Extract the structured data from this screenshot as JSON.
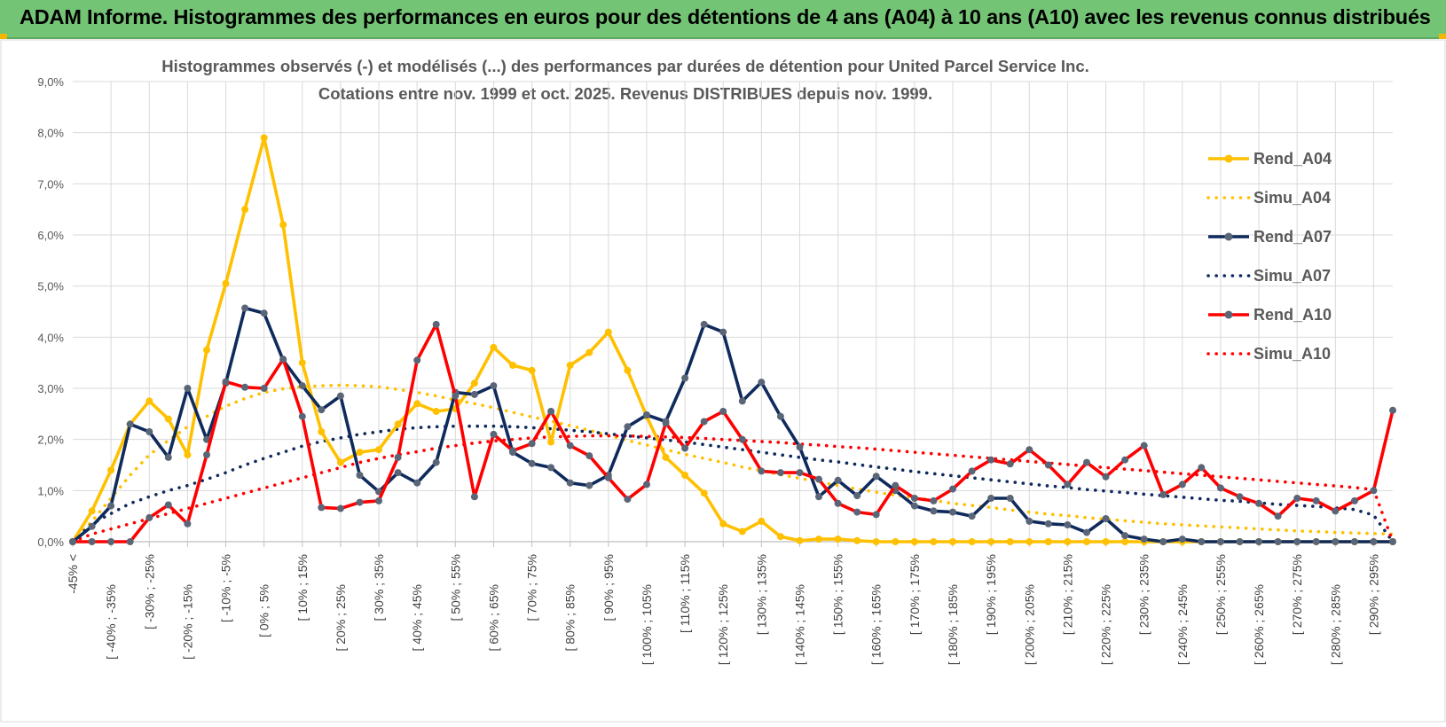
{
  "banner": {
    "title": "ADAM Informe. Histogrammes des performances en euros pour des détentions de 4 ans (A04) à 10 ans (A10) avec les revenus connus distribués"
  },
  "colors": {
    "a04": "#ffc000",
    "a07": "#0f2a5c",
    "a10": "#ff0000",
    "grid": "#d9d9d9",
    "banner": "#74c476"
  },
  "chart_data": {
    "type": "line",
    "title": "Histogrammes observés (-) et modélisés (...) des performances par durées de détention pour United Parcel Service Inc.",
    "subtitle": "Cotations entre nov. 1999 et oct. 2025.  Revenus DISTRIBUES depuis nov. 1999.",
    "y_ticks": [
      "0,0%",
      "1,0%",
      "2,0%",
      "3,0%",
      "4,0%",
      "5,0%",
      "6,0%",
      "7,0%",
      "8,0%",
      "9,0%"
    ],
    "ylim": [
      0,
      9
    ],
    "grid": true,
    "legend_position": "right",
    "x_labels": [
      "-45% <",
      "[ -40% ; -35%",
      "[ -30% ; -25%",
      "[ -20% ; -15%",
      "[ -10% ; -5%",
      "[ 0% ; 5%",
      "[ 10% ; 15%",
      "[ 20% ; 25%",
      "[ 30% ; 35%",
      "[ 40% ; 45%",
      "[ 50% ; 55%",
      "[ 60% ; 65%",
      "[ 70% ; 75%",
      "[ 80% ; 85%",
      "[ 90% ; 95%",
      "[ 100% ; 105%",
      "[ 110% ; 115%",
      "[ 120% ; 125%",
      "[ 130% ; 135%",
      "[ 140% ; 145%",
      "[ 150% ; 155%",
      "[ 160% ; 165%",
      "[ 170% ; 175%",
      "[ 180% ; 185%",
      "[ 190% ; 195%",
      "[ 200% ; 205%",
      "[ 210% ; 215%",
      "[ 220% ; 225%",
      "[ 230% ; 235%",
      "[ 240% ; 245%",
      "[ 250% ; 255%",
      "[ 260% ; 265%",
      "[ 270% ; 275%",
      "[ 280% ; 285%",
      "[ 290% ; 295%"
    ],
    "n_bins": 70,
    "series": [
      {
        "name": "Rend_A04",
        "style": "solid",
        "color": "#ffc000",
        "values": [
          0.0,
          0.6,
          1.4,
          2.3,
          2.75,
          2.4,
          1.7,
          3.75,
          5.05,
          6.5,
          7.9,
          6.2,
          3.5,
          2.15,
          1.55,
          1.75,
          1.8,
          2.3,
          2.7,
          2.55,
          2.6,
          3.1,
          3.8,
          3.45,
          3.35,
          1.95,
          3.45,
          3.7,
          4.1,
          3.35,
          2.45,
          1.65,
          1.3,
          0.95,
          0.35,
          0.2,
          0.4,
          0.1,
          0.02,
          0.05,
          0.05,
          0.02,
          0.0,
          0.0,
          0.0,
          0.0,
          0.0,
          0.0,
          0.0,
          0.0,
          0.0,
          0.0,
          0.0,
          0.0,
          0.0,
          0.0,
          0.0,
          0.0,
          0.0,
          0.0,
          0.0,
          0.0,
          0.0,
          0.0,
          0.0,
          0.0,
          0.0,
          0.0,
          0.0,
          0.0
        ]
      },
      {
        "name": "Simu_A04",
        "style": "dotted",
        "color": "#ffc000",
        "values": [
          0.0,
          0.4,
          0.85,
          1.3,
          1.7,
          1.98,
          2.25,
          2.45,
          2.65,
          2.8,
          2.92,
          2.99,
          3.03,
          3.05,
          3.06,
          3.05,
          3.03,
          2.98,
          2.92,
          2.85,
          2.77,
          2.7,
          2.62,
          2.53,
          2.44,
          2.36,
          2.27,
          2.18,
          2.08,
          1.98,
          1.89,
          1.8,
          1.71,
          1.63,
          1.55,
          1.46,
          1.39,
          1.31,
          1.24,
          1.17,
          1.1,
          1.03,
          0.97,
          0.91,
          0.86,
          0.81,
          0.75,
          0.71,
          0.67,
          0.62,
          0.58,
          0.54,
          0.51,
          0.47,
          0.44,
          0.41,
          0.38,
          0.35,
          0.33,
          0.31,
          0.29,
          0.27,
          0.25,
          0.23,
          0.21,
          0.2,
          0.18,
          0.17,
          0.16,
          0.15
        ]
      },
      {
        "name": "Rend_A07",
        "style": "solid",
        "color": "#0f2a5c",
        "values": [
          0.0,
          0.3,
          0.7,
          2.3,
          2.15,
          1.65,
          3.0,
          2.0,
          3.1,
          4.57,
          4.47,
          3.55,
          3.05,
          2.58,
          2.85,
          1.3,
          0.98,
          1.35,
          1.15,
          1.55,
          2.92,
          2.88,
          3.05,
          1.75,
          1.53,
          1.45,
          1.15,
          1.1,
          1.3,
          2.25,
          2.48,
          2.35,
          3.2,
          4.25,
          4.1,
          2.75,
          3.12,
          2.45,
          1.85,
          0.88,
          1.2,
          0.9,
          1.28,
          1.0,
          0.7,
          0.6,
          0.58,
          0.5,
          0.85,
          0.85,
          0.4,
          0.35,
          0.33,
          0.18,
          0.45,
          0.12,
          0.05,
          0.0,
          0.05,
          0.0,
          0.0,
          0.0,
          0.0,
          0.0,
          0.0,
          0.0,
          0.0,
          0.0,
          0.0,
          0.0
        ]
      },
      {
        "name": "Simu_A07",
        "style": "dotted",
        "color": "#0f2a5c",
        "values": [
          0.0,
          0.35,
          0.55,
          0.75,
          0.88,
          1.0,
          1.1,
          1.22,
          1.35,
          1.5,
          1.63,
          1.75,
          1.87,
          1.96,
          2.03,
          2.1,
          2.15,
          2.2,
          2.23,
          2.25,
          2.26,
          2.26,
          2.26,
          2.25,
          2.23,
          2.21,
          2.18,
          2.15,
          2.11,
          2.07,
          2.03,
          1.99,
          1.95,
          1.9,
          1.85,
          1.8,
          1.75,
          1.7,
          1.65,
          1.6,
          1.56,
          1.51,
          1.46,
          1.42,
          1.37,
          1.33,
          1.29,
          1.25,
          1.21,
          1.17,
          1.13,
          1.09,
          1.06,
          1.02,
          0.99,
          0.96,
          0.93,
          0.9,
          0.87,
          0.84,
          0.81,
          0.79,
          0.76,
          0.73,
          0.71,
          0.69,
          0.66,
          0.63,
          0.52,
          0.0
        ]
      },
      {
        "name": "Rend_A10",
        "style": "solid",
        "color": "#ff0000",
        "values": [
          0.0,
          0.0,
          0.0,
          0.0,
          0.47,
          0.72,
          0.35,
          1.7,
          3.13,
          3.02,
          3.0,
          3.57,
          2.45,
          0.67,
          0.65,
          0.77,
          0.8,
          1.65,
          3.55,
          4.25,
          2.85,
          0.88,
          2.1,
          1.78,
          1.92,
          2.55,
          1.88,
          1.68,
          1.25,
          0.83,
          1.12,
          2.32,
          1.83,
          2.35,
          2.55,
          2.0,
          1.38,
          1.35,
          1.35,
          1.22,
          0.75,
          0.58,
          0.53,
          1.1,
          0.85,
          0.8,
          1.03,
          1.38,
          1.6,
          1.52,
          1.8,
          1.5,
          1.12,
          1.55,
          1.27,
          1.6,
          1.88,
          0.92,
          1.12,
          1.45,
          1.05,
          0.88,
          0.75,
          0.5,
          0.85,
          0.8,
          0.6,
          0.8,
          1.0,
          2.57
        ]
      },
      {
        "name": "Simu_A10",
        "style": "dotted",
        "color": "#ff0000",
        "values": [
          0.0,
          0.15,
          0.25,
          0.35,
          0.45,
          0.55,
          0.65,
          0.75,
          0.85,
          0.95,
          1.05,
          1.15,
          1.25,
          1.35,
          1.45,
          1.55,
          1.63,
          1.7,
          1.76,
          1.83,
          1.88,
          1.93,
          1.97,
          2.0,
          2.03,
          2.05,
          2.06,
          2.07,
          2.07,
          2.07,
          2.06,
          2.05,
          2.04,
          2.02,
          2.0,
          1.98,
          1.96,
          1.94,
          1.91,
          1.89,
          1.86,
          1.84,
          1.81,
          1.78,
          1.75,
          1.72,
          1.69,
          1.66,
          1.63,
          1.6,
          1.57,
          1.54,
          1.51,
          1.48,
          1.45,
          1.42,
          1.39,
          1.36,
          1.33,
          1.3,
          1.27,
          1.24,
          1.21,
          1.18,
          1.15,
          1.12,
          1.09,
          1.06,
          1.02,
          0.0
        ]
      }
    ]
  }
}
